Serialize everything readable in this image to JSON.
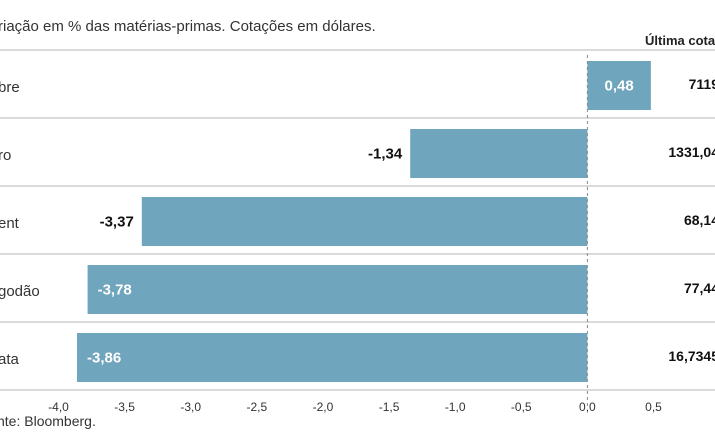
{
  "header": {
    "subtitle": "riação em % das matérias-primas. Cotações em dólares.",
    "quote_column": "Última cotaç"
  },
  "footer": {
    "source": "nte: Bloomberg."
  },
  "colors": {
    "bar": "#6fa5bd",
    "rule": "#b5b5b5",
    "zero_line": "#888888"
  },
  "chart_data": {
    "type": "bar",
    "orientation": "horizontal",
    "categories": [
      "bre",
      "ro",
      "ent",
      "godão",
      "ata"
    ],
    "values": [
      0.48,
      -1.34,
      -3.37,
      -3.78,
      -3.86
    ],
    "value_labels": [
      "0,48",
      "-1,34",
      "-3,37",
      "-3,78",
      "-3,86"
    ],
    "last_quote": [
      "7119",
      "1331,04",
      "68,14",
      "77,44",
      "16,7345"
    ],
    "xlim": [
      -4.0,
      0.5
    ],
    "x_ticks": [
      -4.0,
      -3.5,
      -3.0,
      -2.5,
      -2.0,
      -1.5,
      -1.0,
      -0.5,
      0.0,
      0.5
    ],
    "x_tick_labels": [
      "-4,0",
      "-3,5",
      "-3,0",
      "-2,5",
      "-2,0",
      "-1,5",
      "-1,0",
      "-0,5",
      "0,0",
      "0,5"
    ],
    "grid": false
  }
}
